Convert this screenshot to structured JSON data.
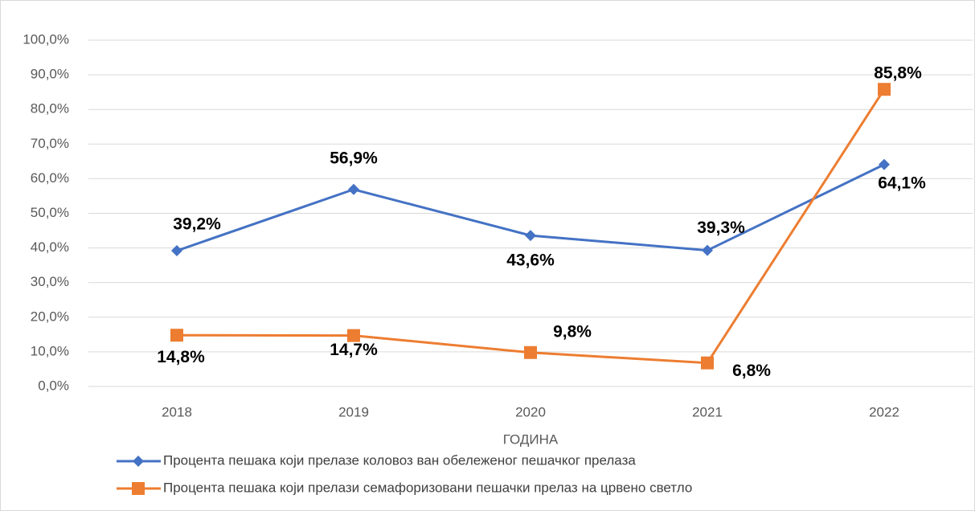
{
  "chart_data": {
    "type": "line",
    "x_label": "ГОДИНА",
    "categories": [
      "2018",
      "2019",
      "2020",
      "2021",
      "2022"
    ],
    "series": [
      {
        "name": "Процента пешака који прелазе коловоз ван обележеног пешачког прелаза",
        "color": "#4472c4",
        "marker": "diamond",
        "values": [
          39.2,
          56.9,
          43.6,
          39.3,
          64.1
        ],
        "value_labels": [
          "39,2%",
          "56,9%",
          "43,6%",
          "39,3%",
          "64,1%"
        ]
      },
      {
        "name": "Процента пешака који прелази семафоризовани пешачки прелаз на црвено светло",
        "color": "#ed7d31",
        "marker": "square",
        "values": [
          14.8,
          14.7,
          9.8,
          6.8,
          85.8
        ],
        "value_labels": [
          "14,8%",
          "14,7%",
          "9,8%",
          "6,8%",
          "85,8%"
        ]
      }
    ],
    "ylim": [
      0,
      100
    ],
    "yticks": [
      {
        "value": 0,
        "label": "0,0%"
      },
      {
        "value": 10,
        "label": "10,0%"
      },
      {
        "value": 20,
        "label": "20,0%"
      },
      {
        "value": 30,
        "label": "30,0%"
      },
      {
        "value": 40,
        "label": "40,0%"
      },
      {
        "value": 50,
        "label": "50,0%"
      },
      {
        "value": 60,
        "label": "60,0%"
      },
      {
        "value": 70,
        "label": "70,0%"
      },
      {
        "value": 80,
        "label": "80,0%"
      },
      {
        "value": 90,
        "label": "90,0%"
      },
      {
        "value": 100,
        "label": "100,0%"
      }
    ],
    "grid": true
  }
}
